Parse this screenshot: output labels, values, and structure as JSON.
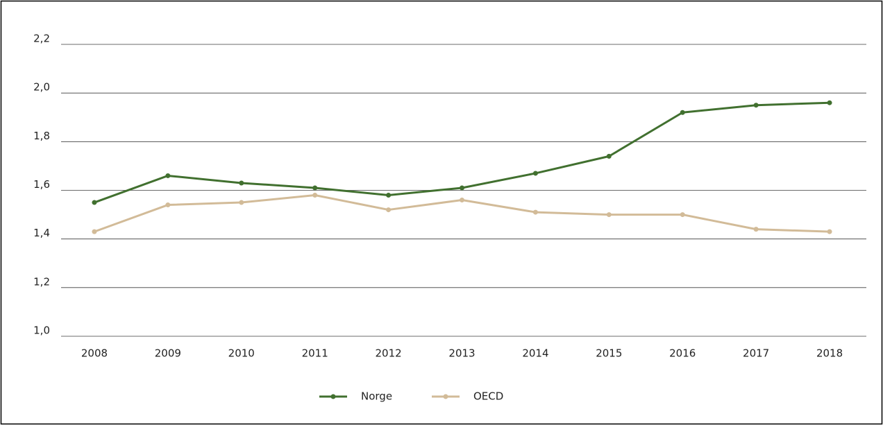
{
  "chart_data": {
    "type": "line",
    "categories": [
      "2008",
      "2009",
      "2010",
      "2011",
      "2012",
      "2013",
      "2014",
      "2015",
      "2016",
      "2017",
      "2018"
    ],
    "series": [
      {
        "name": "Norge",
        "color": "#41702f",
        "values": [
          1.55,
          1.66,
          1.63,
          1.61,
          1.58,
          1.61,
          1.67,
          1.74,
          1.92,
          1.95,
          1.96
        ]
      },
      {
        "name": "OECD",
        "color": "#d2bb98",
        "values": [
          1.43,
          1.54,
          1.55,
          1.58,
          1.52,
          1.56,
          1.51,
          1.5,
          1.5,
          1.44,
          1.43
        ]
      }
    ],
    "ylim": [
      1.0,
      2.2
    ],
    "yticks": [
      {
        "value": 1.0,
        "label": "1,0"
      },
      {
        "value": 1.2,
        "label": "1,2"
      },
      {
        "value": 1.4,
        "label": "1,4"
      },
      {
        "value": 1.6,
        "label": "1,6"
      },
      {
        "value": 1.8,
        "label": "1,8"
      },
      {
        "value": 2.0,
        "label": "2,0"
      },
      {
        "value": 2.2,
        "label": "2,2"
      }
    ],
    "grid": true,
    "legend": "bottom"
  }
}
